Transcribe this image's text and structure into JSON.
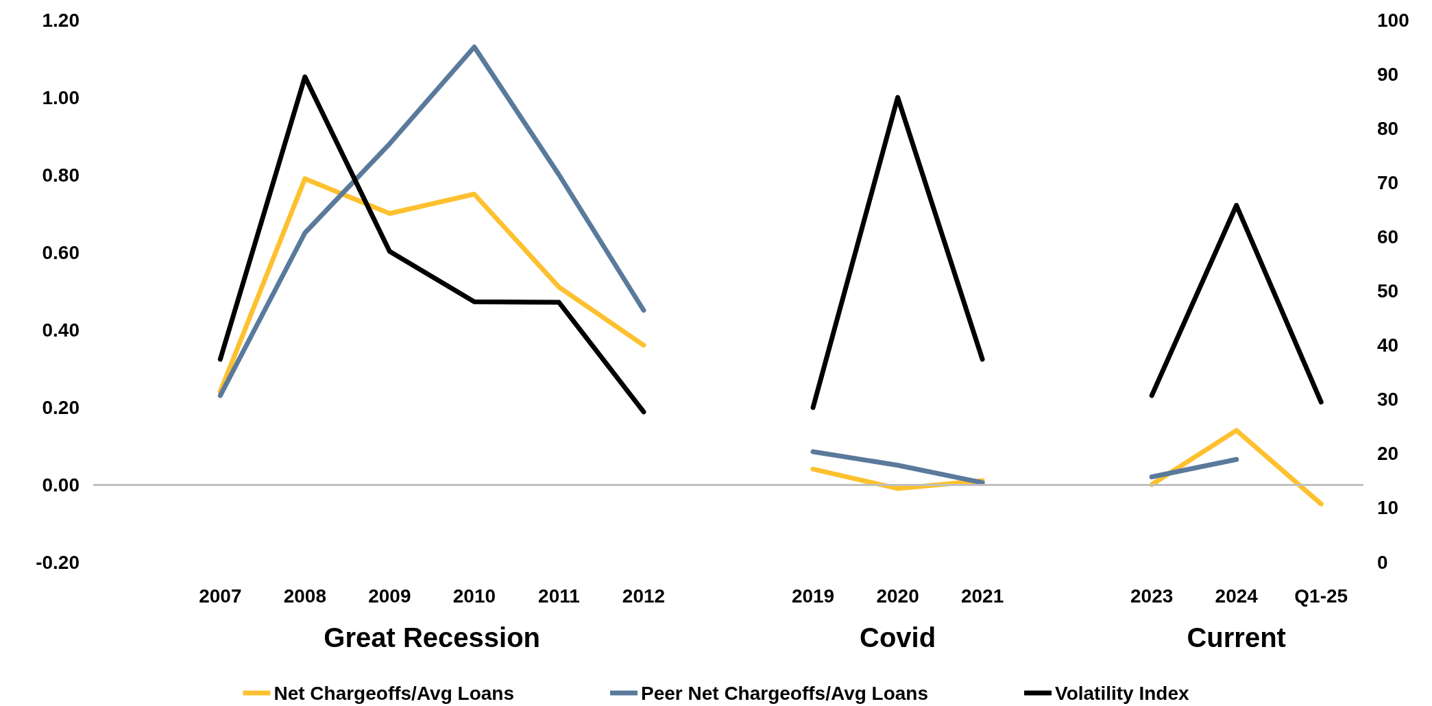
{
  "chart_data": {
    "type": "line",
    "categories": [
      null,
      "2007",
      "2008",
      "2009",
      "2010",
      "2011",
      "2012",
      null,
      "2019",
      "2020",
      "2021",
      null,
      "2023",
      "2024",
      "Q1-25"
    ],
    "series": [
      {
        "name": "Net Chargeoffs/Avg Loans",
        "color": "#fdc130",
        "values": [
          null,
          0.24,
          0.79,
          0.7,
          0.75,
          0.51,
          0.36,
          null,
          0.04,
          -0.01,
          0.01,
          null,
          0.0,
          0.14,
          -0.05
        ]
      },
      {
        "name": "Peer Net Chargeoffs/Avg Loans",
        "color": "#5a7a9c",
        "values": [
          null,
          0.23,
          0.65,
          0.88,
          1.13,
          0.8,
          0.45,
          null,
          0.085,
          0.05,
          0.005,
          null,
          0.02,
          0.065,
          null
        ]
      },
      {
        "name": "Volatility Index",
        "color": "#000000",
        "axis": "y2",
        "values": [
          null,
          37.4,
          89.5,
          57.3,
          48,
          47.9,
          27.7,
          null,
          28.5,
          85.7,
          37.4,
          null,
          30.7,
          65.8,
          29.5
        ]
      }
    ],
    "ylim": [
      -0.2,
      1.2
    ],
    "yticks": [
      {
        "value": -0.2,
        "label": "-0.20"
      },
      {
        "value": 0,
        "label": "0.00"
      },
      {
        "value": 0.2,
        "label": "0.20"
      },
      {
        "value": 0.4,
        "label": "0.40"
      },
      {
        "value": 0.6,
        "label": "0.60"
      },
      {
        "value": 0.8,
        "label": "0.80"
      },
      {
        "value": 1.0,
        "label": "1.00"
      },
      {
        "value": 1.2,
        "label": "1.20"
      }
    ],
    "y2lim": [
      0,
      100
    ],
    "y2ticks": [
      0,
      10,
      20,
      30,
      40,
      50,
      60,
      70,
      80,
      90,
      100
    ],
    "annotations": [
      "Great Recession",
      "Covid",
      "Current"
    ],
    "ref_lines": [
      {
        "axis": "y",
        "value": 0,
        "color": "#bfbfbf"
      }
    ],
    "legend": "bottom",
    "grid": false,
    "marker": "none",
    "line_style": "solid"
  }
}
